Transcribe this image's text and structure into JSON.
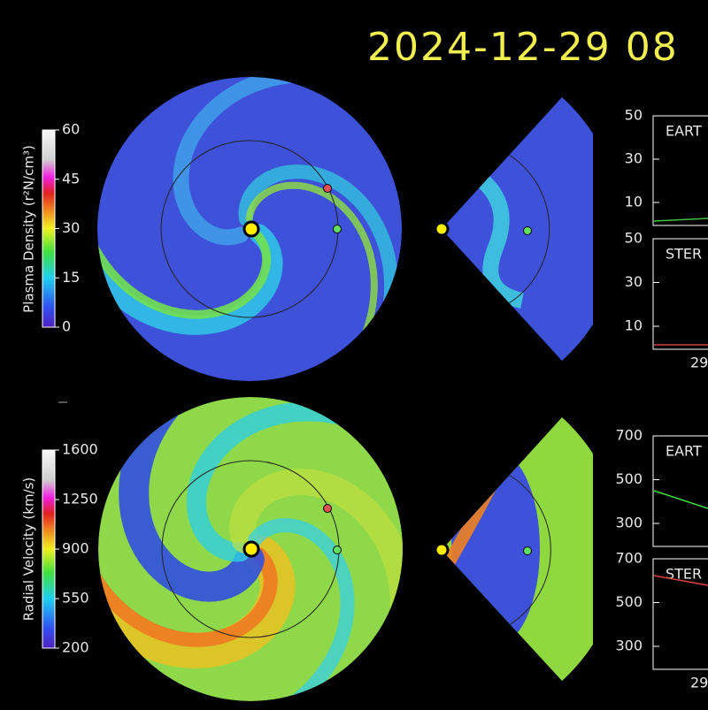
{
  "header": {
    "title": "2024-12-29  08"
  },
  "colorbars": [
    {
      "label": "Plasma Density (r²N/cm³)",
      "ticks": [
        "60",
        "45",
        "30",
        "15",
        "0"
      ]
    },
    {
      "label": "Radial Velocity (km/s)",
      "ticks": [
        "1600",
        "1250",
        "900",
        "550",
        "200"
      ]
    }
  ],
  "timeseries": [
    {
      "panels": [
        {
          "label": "EART",
          "ticks": [
            "50",
            "30",
            "10"
          ]
        },
        {
          "label": "STER",
          "ticks": [
            "50",
            "30",
            "10"
          ]
        }
      ],
      "date": "29"
    },
    {
      "panels": [
        {
          "label": "EART",
          "ticks": [
            "700",
            "500",
            "300"
          ]
        },
        {
          "label": "STER",
          "ticks": [
            "700",
            "500",
            "300"
          ]
        }
      ],
      "date": "29"
    }
  ]
}
